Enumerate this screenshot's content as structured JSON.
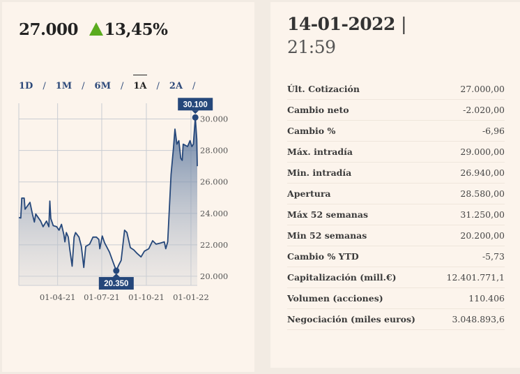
{
  "quote": {
    "price": "27.000",
    "change_pct": "13,45%",
    "direction": "up",
    "up_color": "#5aab1e"
  },
  "ranges": [
    {
      "label": "1D",
      "active": false
    },
    {
      "label": "1M",
      "active": false
    },
    {
      "label": "6M",
      "active": false
    },
    {
      "label": "1A",
      "active": true
    },
    {
      "label": "2A",
      "active": false
    }
  ],
  "range_separator": "/",
  "chart_data": {
    "type": "area",
    "line_color": "#25477a",
    "grid": true,
    "x_ticks": [
      "01-04-21",
      "01-07-21",
      "01-10-21",
      "01-01-22"
    ],
    "y_ticks": [
      "20.000",
      "22.000",
      "24.000",
      "26.000",
      "28.000",
      "30.000"
    ],
    "y_tick_values": [
      20000,
      22000,
      24000,
      26000,
      28000,
      30000
    ],
    "xlim": [
      "2021-01-11",
      "2022-01-14"
    ],
    "ylim": [
      19420,
      31000
    ],
    "max_label": "30.100",
    "min_label": "20.350",
    "max_point": {
      "date": "2022-01-10",
      "value": 30100
    },
    "min_point": {
      "date": "2021-07-31",
      "value": 20350
    },
    "points": [
      [
        "2021-01-11",
        23740
      ],
      [
        "2021-01-15",
        23700
      ],
      [
        "2021-01-17",
        24970
      ],
      [
        "2021-01-22",
        24970
      ],
      [
        "2021-01-24",
        24260
      ],
      [
        "2021-02-03",
        24700
      ],
      [
        "2021-02-08",
        23960
      ],
      [
        "2021-02-12",
        23450
      ],
      [
        "2021-02-15",
        23960
      ],
      [
        "2021-02-25",
        23510
      ],
      [
        "2021-03-02",
        23150
      ],
      [
        "2021-03-09",
        23510
      ],
      [
        "2021-03-14",
        23150
      ],
      [
        "2021-03-16",
        24780
      ],
      [
        "2021-03-18",
        23670
      ],
      [
        "2021-03-23",
        23220
      ],
      [
        "2021-03-30",
        23150
      ],
      [
        "2021-04-04",
        22930
      ],
      [
        "2021-04-09",
        23300
      ],
      [
        "2021-04-14",
        22630
      ],
      [
        "2021-04-16",
        22190
      ],
      [
        "2021-04-19",
        22780
      ],
      [
        "2021-04-23",
        22490
      ],
      [
        "2021-04-26",
        21750
      ],
      [
        "2021-05-01",
        20640
      ],
      [
        "2021-05-05",
        22490
      ],
      [
        "2021-05-08",
        22780
      ],
      [
        "2021-05-15",
        22490
      ],
      [
        "2021-05-20",
        21900
      ],
      [
        "2021-05-25",
        20560
      ],
      [
        "2021-05-29",
        21900
      ],
      [
        "2021-06-06",
        22040
      ],
      [
        "2021-06-13",
        22490
      ],
      [
        "2021-06-20",
        22490
      ],
      [
        "2021-06-25",
        22340
      ],
      [
        "2021-06-27",
        21750
      ],
      [
        "2021-07-02",
        22560
      ],
      [
        "2021-07-07",
        22120
      ],
      [
        "2021-07-17",
        21530
      ],
      [
        "2021-07-24",
        20930
      ],
      [
        "2021-07-31",
        20350
      ],
      [
        "2021-08-05",
        20710
      ],
      [
        "2021-08-10",
        21010
      ],
      [
        "2021-08-17",
        22930
      ],
      [
        "2021-08-22",
        22780
      ],
      [
        "2021-08-29",
        21820
      ],
      [
        "2021-09-05",
        21680
      ],
      [
        "2021-09-12",
        21450
      ],
      [
        "2021-09-20",
        21230
      ],
      [
        "2021-09-27",
        21600
      ],
      [
        "2021-10-06",
        21750
      ],
      [
        "2021-10-14",
        22260
      ],
      [
        "2021-10-21",
        22040
      ],
      [
        "2021-10-30",
        22110
      ],
      [
        "2021-11-07",
        22190
      ],
      [
        "2021-11-10",
        21750
      ],
      [
        "2021-11-14",
        22190
      ],
      [
        "2021-11-21",
        26480
      ],
      [
        "2021-11-26",
        28180
      ],
      [
        "2021-11-29",
        29360
      ],
      [
        "2021-12-03",
        28400
      ],
      [
        "2021-12-07",
        28620
      ],
      [
        "2021-12-11",
        27510
      ],
      [
        "2021-12-14",
        27370
      ],
      [
        "2021-12-16",
        28400
      ],
      [
        "2021-12-25",
        28250
      ],
      [
        "2021-12-30",
        28620
      ],
      [
        "2022-01-03",
        28250
      ],
      [
        "2022-01-06",
        28400
      ],
      [
        "2022-01-10",
        30100
      ],
      [
        "2022-01-13",
        28720
      ],
      [
        "2022-01-14",
        27000
      ]
    ]
  },
  "info": {
    "date": "14-01-2022",
    "date_separator": "|",
    "time": "21:59",
    "rows": [
      {
        "label": "Últ. Cotización",
        "value": "27.000,00"
      },
      {
        "label": "Cambio neto",
        "value": "-2.020,00"
      },
      {
        "label": "Cambio %",
        "value": "-6,96"
      },
      {
        "label": "Máx. intradía",
        "value": "29.000,00"
      },
      {
        "label": "Min. intradía",
        "value": "26.940,00"
      },
      {
        "label": "Apertura",
        "value": "28.580,00"
      },
      {
        "label": "Máx 52 semanas",
        "value": "31.250,00"
      },
      {
        "label": "Min 52 semanas",
        "value": "20.200,00"
      },
      {
        "label": "Cambio % YTD",
        "value": "-5,73"
      },
      {
        "label": "Capitalización (mill.€)",
        "value": "12.401.771,1"
      },
      {
        "label": "Volumen (acciones)",
        "value": "110.406"
      },
      {
        "label": "Negociación (miles euros)",
        "value": "3.048.893,6"
      }
    ]
  }
}
